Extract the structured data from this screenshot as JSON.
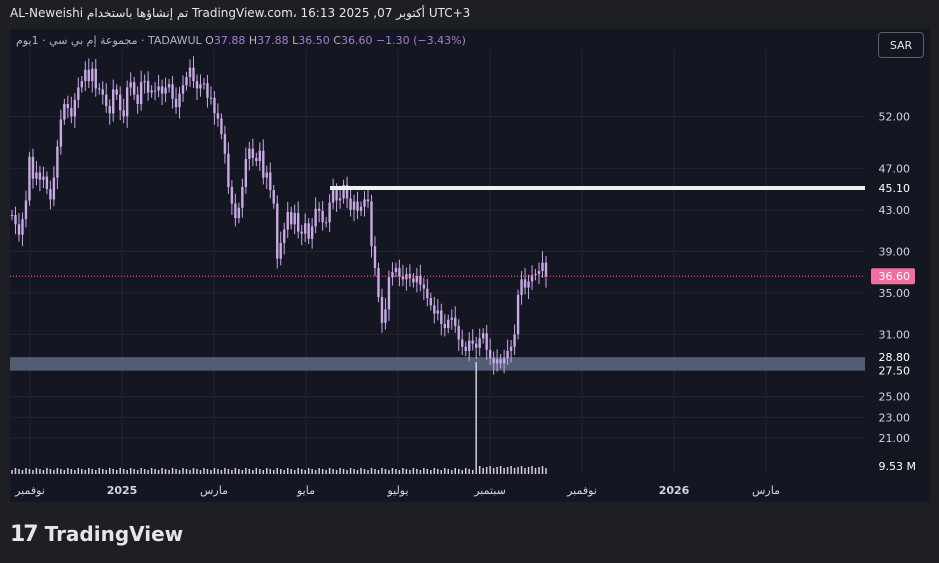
{
  "header": {
    "credit": "AL-Neweishi تم إنشاؤها باستخدام TradingView.com، 16:13 2025 ,07 أكتوبر UTC+3"
  },
  "legend": {
    "symbol": "مجموعة إم بي سي · 1يوم · TADAWUL",
    "o_label": "O",
    "o_value": "37.88",
    "h_label": "H",
    "h_value": "37.88",
    "l_label": "L",
    "l_value": "36.50",
    "c_label": "C",
    "c_value": "36.60",
    "change": "−1.30 (−3.43%)"
  },
  "currency_button": "SAR",
  "colors": {
    "background": "#141722",
    "candles": "#c9a8e6",
    "support_zone": "#5d6b84",
    "resistance_line": "#f0f0f0",
    "price_tag": "#f06fa0",
    "grid": "#222633"
  },
  "chart_data": {
    "type": "candlestick",
    "y_axis_ticks": [
      "52.00",
      "47.00",
      "43.00",
      "39.00",
      "35.00",
      "31.00",
      "25.00",
      "23.00",
      "21.00"
    ],
    "x_axis_ticks": [
      "نوفمبر",
      "2025",
      "مارس",
      "مايو",
      "يوليو",
      "سبتمبر",
      "نوفمبر",
      "2026",
      "مارس"
    ],
    "ylim": [
      18.5,
      58.5
    ],
    "last_price": "36.60",
    "resistance": {
      "value": 45.1,
      "label": "45.10"
    },
    "support_zone": {
      "low": 27.5,
      "high": 28.8,
      "low_label": "27.50",
      "high_label": "28.80"
    },
    "volume_label": "9.53 M",
    "series": [
      {
        "name": "",
        "closes": [
          42.5,
          41.6,
          40.6,
          42.1,
          43.9,
          48.1,
          46.0,
          46.6,
          45.9,
          46.2,
          45.0,
          44.0,
          46.1,
          49.1,
          51.7,
          53.2,
          52.8,
          52.0,
          53.6,
          54.8,
          55.4,
          56.5,
          55.4,
          56.6,
          54.7,
          54.6,
          54.1,
          53.0,
          52.3,
          54.6,
          54.1,
          52.6,
          52.0,
          54.8,
          55.3,
          54.1,
          53.2,
          55.3,
          55.4,
          54.3,
          54.5,
          54.5,
          54.9,
          54.2,
          54.8,
          55.1,
          53.7,
          52.9,
          54.2,
          55.0,
          55.8,
          56.7,
          55.4,
          54.7,
          55.1,
          55.2,
          53.8,
          53.8,
          52.3,
          51.8,
          50.3,
          48.4,
          45.2,
          43.6,
          42.2,
          43.2,
          45.2,
          47.9,
          48.9,
          48.0,
          47.7,
          48.7,
          46.1,
          46.6,
          44.9,
          43.6,
          38.3,
          39.8,
          41.1,
          42.8,
          41.6,
          42.7,
          40.9,
          40.7,
          41.7,
          40.2,
          41.4,
          43.1,
          42.9,
          41.8,
          41.8,
          43.7,
          44.9,
          43.9,
          44.1,
          45.4,
          44.1,
          43.0,
          43.8,
          42.9,
          43.3,
          44.0,
          43.8,
          39.5,
          37.4,
          34.6,
          32.1,
          33.4,
          36.5,
          37.0,
          37.4,
          36.6,
          36.3,
          36.8,
          36.4,
          36.0,
          36.6,
          35.8,
          35.4,
          34.5,
          33.8,
          33.0,
          33.3,
          32.0,
          31.6,
          32.4,
          32.6,
          31.8,
          30.5,
          29.8,
          29.4,
          30.4,
          30.1,
          29.7,
          30.6,
          31.1,
          29.5,
          28.7,
          28.2,
          28.6,
          28.2,
          28.7,
          29.4,
          29.8,
          31.0,
          34.8,
          36.3,
          35.5,
          36.1,
          36.7,
          36.8,
          37.1,
          37.9,
          36.6
        ]
      }
    ]
  }
}
